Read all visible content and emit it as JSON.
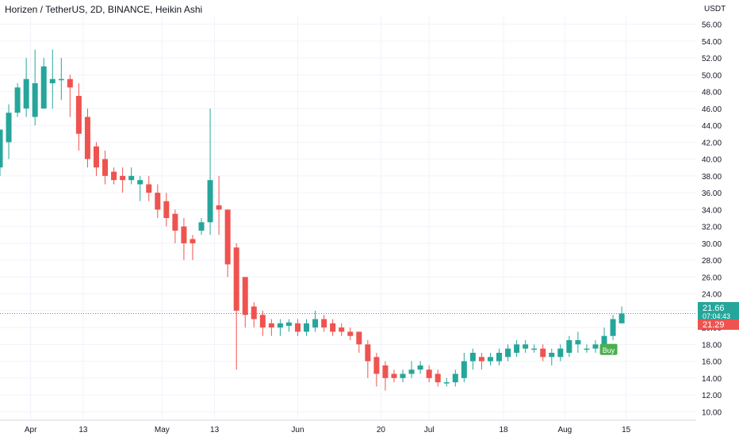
{
  "header": {
    "title": "Horizen / TetherUS, 2D, BINANCE, Heikin Ashi"
  },
  "currency_label": "USDT",
  "colors": {
    "up": "#26a69a",
    "down": "#ef5350",
    "grid": "#f0f3fa",
    "text": "#131722",
    "buy_badge": "#4caf50",
    "last_line": "#26a69a"
  },
  "price_labels": {
    "last": "21.66",
    "countdown": "07:04:43",
    "second": "21.29"
  },
  "signals": [
    {
      "label": "Buy",
      "x": "2022-08-11",
      "y": 17.4
    }
  ],
  "chart_data": {
    "type": "candlestick",
    "style": "Heikin Ashi",
    "ylim": [
      9,
      57
    ],
    "xlim": [
      "2022-03-25",
      "2022-08-31"
    ],
    "y_ticks": [
      10,
      12,
      14,
      16,
      18,
      20,
      22,
      24,
      26,
      28,
      30,
      32,
      34,
      36,
      38,
      40,
      42,
      44,
      46,
      48,
      50,
      52,
      54,
      56
    ],
    "y_tick_labels": [
      "10.00",
      "12.00",
      "14.00",
      "16.00",
      "18.00",
      "20.00",
      "22.00",
      "24.00",
      "26.00",
      "28.00",
      "30.00",
      "32.00",
      "34.00",
      "36.00",
      "38.00",
      "40.00",
      "42.00",
      "44.00",
      "46.00",
      "48.00",
      "50.00",
      "52.00",
      "54.00",
      "56.00"
    ],
    "x_ticks": [
      {
        "label": "Apr",
        "date": "2022-04-01"
      },
      {
        "label": "13",
        "date": "2022-04-13"
      },
      {
        "label": "May",
        "date": "2022-05-01"
      },
      {
        "label": "13",
        "date": "2022-05-13"
      },
      {
        "label": "Jun",
        "date": "2022-06-01"
      },
      {
        "label": "20",
        "date": "2022-06-20"
      },
      {
        "label": "Jul",
        "date": "2022-07-01"
      },
      {
        "label": "18",
        "date": "2022-07-18"
      },
      {
        "label": "Aug",
        "date": "2022-08-01"
      },
      {
        "label": "15",
        "date": "2022-08-15"
      }
    ],
    "last_price": 21.66,
    "grid": true,
    "candles": [
      [
        "2022-03-25",
        39.0,
        43.5,
        42,
        38
      ],
      [
        "2022-03-27",
        42.0,
        45.5,
        46.5,
        40
      ],
      [
        "2022-03-29",
        45.5,
        48.5,
        49,
        45
      ],
      [
        "2022-03-31",
        46.0,
        49.5,
        52,
        45
      ],
      [
        "2022-04-02",
        45.0,
        49.0,
        53,
        44
      ],
      [
        "2022-04-04",
        46.0,
        51.0,
        52,
        46
      ],
      [
        "2022-04-06",
        49.0,
        49.5,
        53,
        46
      ],
      [
        "2022-04-08",
        49.5,
        49.5,
        52,
        47
      ],
      [
        "2022-04-10",
        49.5,
        48.5,
        50,
        45
      ],
      [
        "2022-04-12",
        47.5,
        43.0,
        49,
        41
      ],
      [
        "2022-04-14",
        45.0,
        40.0,
        46,
        39
      ],
      [
        "2022-04-16",
        41.5,
        39.0,
        42,
        38
      ],
      [
        "2022-04-18",
        40.0,
        38.0,
        41,
        37
      ],
      [
        "2022-04-20",
        38.5,
        37.5,
        39,
        37
      ],
      [
        "2022-04-22",
        38.0,
        37.5,
        39,
        36
      ],
      [
        "2022-04-24",
        37.5,
        38.0,
        39,
        37
      ],
      [
        "2022-04-26",
        37.0,
        37.5,
        38,
        35
      ],
      [
        "2022-04-28",
        37.0,
        36.0,
        38,
        35
      ],
      [
        "2022-04-30",
        36.0,
        34.0,
        37,
        33
      ],
      [
        "2022-05-02",
        35.0,
        33.0,
        36,
        32
      ],
      [
        "2022-05-04",
        33.5,
        31.5,
        34,
        30
      ],
      [
        "2022-05-06",
        32.0,
        30.0,
        33,
        28
      ],
      [
        "2022-05-08",
        30.5,
        30.0,
        31,
        28
      ],
      [
        "2022-05-10",
        31.5,
        32.5,
        33,
        31
      ],
      [
        "2022-05-12",
        32.5,
        37.5,
        46,
        31
      ],
      [
        "2022-05-14",
        34.5,
        34.0,
        38,
        31
      ],
      [
        "2022-05-16",
        34.0,
        27.5,
        34,
        26
      ],
      [
        "2022-05-18",
        29.5,
        22.0,
        30,
        15
      ],
      [
        "2022-05-20",
        26.0,
        21.5,
        26,
        20
      ],
      [
        "2022-05-22",
        22.5,
        21.0,
        23,
        20
      ],
      [
        "2022-05-24",
        21.5,
        20.0,
        22,
        19
      ],
      [
        "2022-05-26",
        20.5,
        20.0,
        21,
        19
      ],
      [
        "2022-05-28",
        20.0,
        20.5,
        21,
        19
      ],
      [
        "2022-05-30",
        20.2,
        20.6,
        21,
        19.5
      ],
      [
        "2022-06-01",
        20.5,
        19.5,
        21,
        19
      ],
      [
        "2022-06-03",
        19.5,
        20.5,
        21,
        19
      ],
      [
        "2022-06-05",
        20.0,
        21.0,
        22,
        19.5
      ],
      [
        "2022-06-07",
        21.0,
        20.0,
        21.5,
        19.5
      ],
      [
        "2022-06-09",
        20.5,
        19.5,
        21,
        19
      ],
      [
        "2022-06-11",
        20.0,
        19.5,
        20.5,
        19
      ],
      [
        "2022-06-13",
        19.5,
        19.0,
        20,
        18.5
      ],
      [
        "2022-06-15",
        19.5,
        18.0,
        19.5,
        17
      ],
      [
        "2022-06-17",
        18.0,
        16.0,
        18.5,
        14
      ],
      [
        "2022-06-19",
        16.5,
        14.5,
        17,
        13
      ],
      [
        "2022-06-21",
        15.5,
        14.0,
        16,
        12.5
      ],
      [
        "2022-06-23",
        14.5,
        14.0,
        15,
        13.5
      ],
      [
        "2022-06-25",
        14.0,
        14.5,
        15,
        13.5
      ],
      [
        "2022-06-27",
        14.5,
        15.0,
        16,
        14
      ],
      [
        "2022-06-29",
        15.0,
        15.5,
        16,
        14.5
      ],
      [
        "2022-07-01",
        15.0,
        14.0,
        15.5,
        13.5
      ],
      [
        "2022-07-03",
        14.5,
        13.5,
        15,
        13
      ],
      [
        "2022-07-05",
        13.5,
        13.5,
        14,
        13
      ],
      [
        "2022-07-07",
        13.5,
        14.5,
        15,
        13
      ],
      [
        "2022-07-09",
        14.0,
        16.0,
        17,
        13.5
      ],
      [
        "2022-07-11",
        16.0,
        17.0,
        17.5,
        15
      ],
      [
        "2022-07-13",
        16.5,
        16.0,
        17,
        15
      ],
      [
        "2022-07-15",
        16.0,
        16.5,
        17,
        15.5
      ],
      [
        "2022-07-17",
        16.0,
        17.0,
        17.5,
        15.5
      ],
      [
        "2022-07-19",
        16.5,
        17.5,
        18,
        16
      ],
      [
        "2022-07-21",
        17.0,
        18.0,
        18.5,
        16.5
      ],
      [
        "2022-07-23",
        17.5,
        18.0,
        18.5,
        17
      ],
      [
        "2022-07-25",
        17.5,
        17.5,
        18,
        17
      ],
      [
        "2022-07-27",
        17.5,
        16.5,
        18,
        16
      ],
      [
        "2022-07-29",
        16.5,
        17.0,
        17.5,
        15.5
      ],
      [
        "2022-07-31",
        16.5,
        17.5,
        18,
        16
      ],
      [
        "2022-08-02",
        17.0,
        18.5,
        19,
        16.5
      ],
      [
        "2022-08-04",
        18.0,
        18.5,
        19.5,
        17
      ],
      [
        "2022-08-06",
        17.5,
        17.5,
        18,
        17
      ],
      [
        "2022-08-08",
        17.5,
        18.0,
        18.5,
        17
      ],
      [
        "2022-08-10",
        18.0,
        19.0,
        20,
        17.5
      ],
      [
        "2022-08-12",
        19.0,
        21.0,
        21.5,
        18.5
      ],
      [
        "2022-08-14",
        20.5,
        21.66,
        22.5,
        20.5
      ]
    ]
  }
}
